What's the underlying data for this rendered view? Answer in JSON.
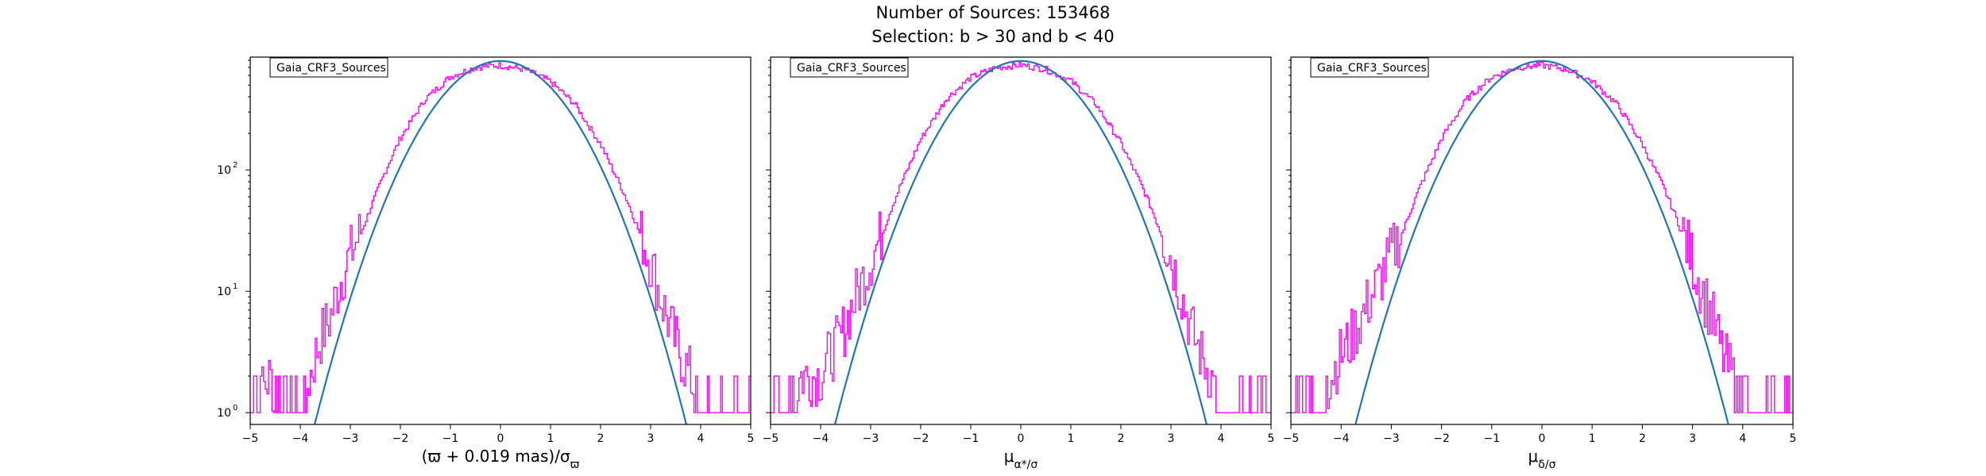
{
  "figure": {
    "title": "Number of Sources: 153468",
    "subtitle": "Selection: b > 30 and b < 40"
  },
  "colors": {
    "histogram": "#ff00ff",
    "model": "#1f77b4",
    "axes": "#000000",
    "background": "#ffffff"
  },
  "chart_data": [
    {
      "type": "line",
      "legend_label": "Gaia_CRF3_Sources",
      "legend_position": "upper-left",
      "xlabel": "(ϖ + 0.019 mas)/σ_ϖ",
      "xlim": [
        -5,
        5
      ],
      "ylim": [
        0.8,
        850
      ],
      "yscale": "log",
      "grid": false,
      "x_ticks": [
        "−5",
        "−4",
        "−3",
        "−2",
        "−1",
        "0",
        "1",
        "2",
        "3",
        "4",
        "5"
      ],
      "y_ticks": [
        {
          "base": "10",
          "exp": "0",
          "value": 1
        },
        {
          "base": "10",
          "exp": "1",
          "value": 10
        },
        {
          "base": "10",
          "exp": "2",
          "value": 100
        }
      ],
      "series": [
        {
          "kind": "histogram-step",
          "x": [
            -5.0,
            -4.6,
            -4.4,
            -4.2,
            -4.0,
            -3.8,
            -3.6,
            -3.4,
            -3.2,
            -3.0,
            -2.8,
            -2.6,
            -2.4,
            -2.2,
            -2.0,
            -1.5,
            -1.0,
            -0.5,
            0.0,
            0.5,
            1.0,
            1.5,
            2.0,
            2.2,
            2.4,
            2.6,
            2.8,
            3.0,
            3.2,
            3.4,
            3.6,
            3.8,
            4.0,
            4.2,
            4.4,
            4.6,
            5.0
          ],
          "y": [
            1,
            2,
            1,
            1,
            1,
            2,
            4,
            6,
            12,
            20,
            30,
            50,
            80,
            125,
            190,
            400,
            610,
            730,
            760,
            700,
            560,
            360,
            170,
            115,
            78,
            50,
            30,
            18,
            9,
            5,
            3,
            2,
            1,
            1,
            1,
            1,
            1
          ]
        },
        {
          "kind": "gaussian-model",
          "amplitude": 790,
          "mean": 0.0,
          "sigma": 1.0
        }
      ]
    },
    {
      "type": "line",
      "legend_label": "Gaia_CRF3_Sources",
      "legend_position": "upper-left",
      "xlabel": "μ_α*/σ_μα*",
      "xlim": [
        -5,
        5
      ],
      "ylim": [
        0.8,
        850
      ],
      "yscale": "log",
      "grid": false,
      "x_ticks": [
        "−5",
        "−4",
        "−3",
        "−2",
        "−1",
        "0",
        "1",
        "2",
        "3",
        "4",
        "5"
      ],
      "series": [
        {
          "kind": "histogram-step",
          "x": [
            -5.0,
            -4.6,
            -4.4,
            -4.2,
            -4.0,
            -3.8,
            -3.6,
            -3.4,
            -3.2,
            -3.0,
            -2.8,
            -2.6,
            -2.4,
            -2.2,
            -2.0,
            -1.5,
            -1.0,
            -0.5,
            0.0,
            0.5,
            1.0,
            1.5,
            2.0,
            2.2,
            2.4,
            2.6,
            2.8,
            3.0,
            3.2,
            3.4,
            3.6,
            3.8,
            4.0,
            4.2,
            4.4,
            4.6,
            5.0
          ],
          "y": [
            1,
            1,
            2,
            2,
            2,
            3,
            4,
            7,
            11,
            18,
            28,
            48,
            78,
            120,
            185,
            395,
            600,
            725,
            765,
            705,
            565,
            365,
            175,
            118,
            80,
            52,
            32,
            19,
            10,
            5,
            3,
            2,
            1,
            1,
            1,
            1,
            1
          ]
        },
        {
          "kind": "gaussian-model",
          "amplitude": 790,
          "mean": 0.0,
          "sigma": 1.0
        }
      ]
    },
    {
      "type": "line",
      "legend_label": "Gaia_CRF3_Sources",
      "legend_position": "upper-left",
      "xlabel": "μ_δ/σ_μδ",
      "xlim": [
        -5,
        5
      ],
      "ylim": [
        0.8,
        850
      ],
      "yscale": "log",
      "grid": false,
      "x_ticks": [
        "−5",
        "−4",
        "−3",
        "−2",
        "−1",
        "0",
        "1",
        "2",
        "3",
        "4",
        "5"
      ],
      "series": [
        {
          "kind": "histogram-step",
          "x": [
            -5.0,
            -4.6,
            -4.4,
            -4.2,
            -4.0,
            -3.8,
            -3.6,
            -3.4,
            -3.2,
            -3.0,
            -2.8,
            -2.6,
            -2.4,
            -2.2,
            -2.0,
            -1.5,
            -1.0,
            -0.5,
            0.0,
            0.5,
            1.0,
            1.5,
            2.0,
            2.2,
            2.4,
            2.6,
            2.8,
            3.0,
            3.2,
            3.4,
            3.6,
            3.8,
            4.0,
            4.2,
            4.4,
            4.6,
            5.0
          ],
          "y": [
            1,
            1,
            1,
            2,
            3,
            4,
            6,
            9,
            13,
            20,
            30,
            50,
            80,
            122,
            188,
            398,
            605,
            728,
            762,
            702,
            562,
            362,
            172,
            116,
            79,
            51,
            31,
            18,
            10,
            6,
            3,
            2,
            1,
            1,
            1,
            1,
            1
          ]
        },
        {
          "kind": "gaussian-model",
          "amplitude": 790,
          "mean": 0.0,
          "sigma": 1.0
        }
      ]
    }
  ]
}
